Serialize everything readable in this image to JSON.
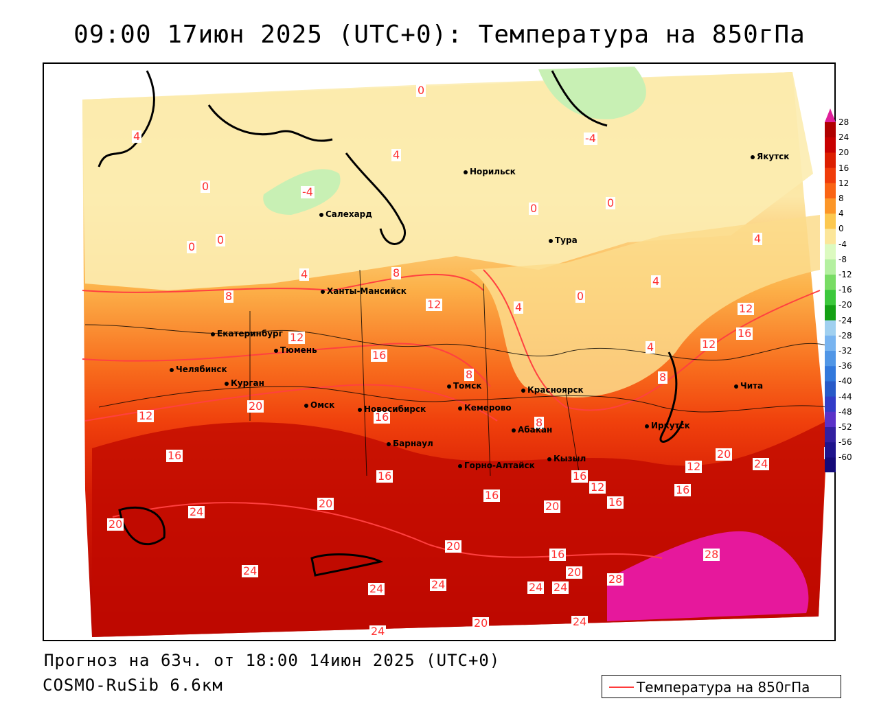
{
  "title": "09:00 17июн 2025 (UTC+0): Температура на 850гПа",
  "footer": {
    "forecast": "Прогноз на 63ч. от 18:00 14июн 2025 (UTC+0)",
    "model": "COSMO-RuSib 6.6км"
  },
  "legend": {
    "label": "Температура на 850гПа",
    "line_color": "#ff3b3b"
  },
  "colorbar": {
    "labels": [
      "28",
      "24",
      "20",
      "16",
      "12",
      "8",
      "4",
      "0",
      "-4",
      "-8",
      "-12",
      "-16",
      "-20",
      "-24",
      "-28",
      "-32",
      "-36",
      "-40",
      "-44",
      "-48",
      "-52",
      "-56",
      "-60"
    ],
    "colors": [
      "#b00000",
      "#c80000",
      "#dc1e00",
      "#f03c0a",
      "#fa6414",
      "#fc9628",
      "#fcc850",
      "#fce69a",
      "#dcfac0",
      "#b4f0a0",
      "#78dc64",
      "#3cc83c",
      "#14a014",
      "#a0d0f0",
      "#78b4f0",
      "#5096e6",
      "#3278dc",
      "#285ac8",
      "#323cc8",
      "#5a32c8",
      "#3220a0",
      "#1e148c",
      "#140a78"
    ],
    "top_color": "#e0209a",
    "bottom_color": "#b020c0"
  },
  "cities": [
    {
      "name": "Норильск"
    },
    {
      "name": "Якутск"
    },
    {
      "name": "Салехард"
    },
    {
      "name": "Тура"
    },
    {
      "name": "Ханты-Мансийск"
    },
    {
      "name": "Екатеринбург"
    },
    {
      "name": "Тюмень"
    },
    {
      "name": "Челябинск"
    },
    {
      "name": "Курган"
    },
    {
      "name": "Омск"
    },
    {
      "name": "Новосибирск"
    },
    {
      "name": "Томск"
    },
    {
      "name": "Кемерово"
    },
    {
      "name": "Красноярск"
    },
    {
      "name": "Барнаул"
    },
    {
      "name": "Абакан"
    },
    {
      "name": "Иркутск"
    },
    {
      "name": "Чита"
    },
    {
      "name": "Кызыл"
    },
    {
      "name": "Горно-Алтайск"
    }
  ],
  "isolines": [
    "4",
    "0",
    "-4",
    "-4",
    "0",
    "4",
    "0",
    "0",
    "0",
    "4",
    "0",
    "0",
    "4",
    "8",
    "8",
    "12",
    "4",
    "12",
    "4",
    "12",
    "4",
    "12",
    "16",
    "16",
    "12",
    "16",
    "8",
    "8",
    "8",
    "16",
    "20",
    "16",
    "16",
    "12",
    "16",
    "20",
    "24",
    "20",
    "12",
    "16",
    "16",
    "20",
    "20",
    "16",
    "20",
    "24",
    "24",
    "20",
    "24",
    "28",
    "24",
    "24",
    "24",
    "20",
    "28",
    "24",
    "20",
    "24"
  ]
}
